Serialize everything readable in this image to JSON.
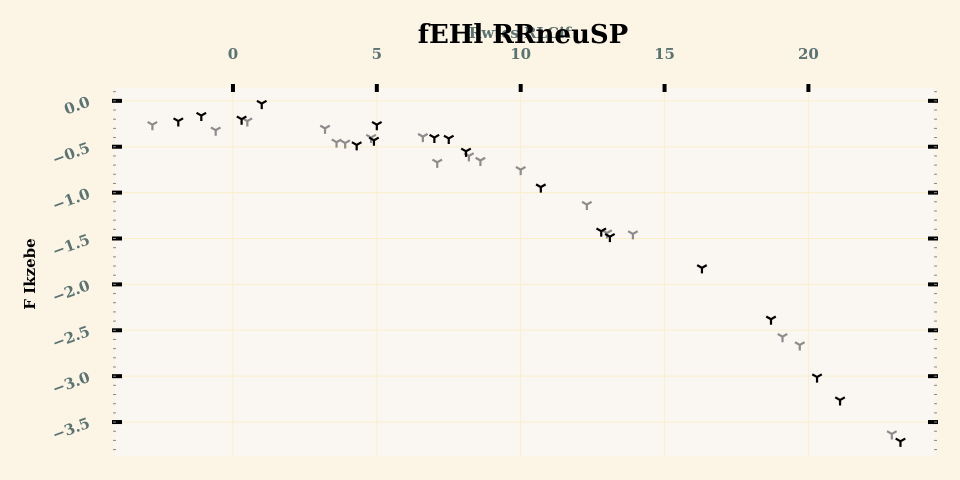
{
  "chart_data": {
    "type": "scatter",
    "title": "fEHl RRneuSP",
    "xlabel": "Rwtcs RLCif",
    "ylabel": "F Ikzebe",
    "xlim": [
      -4.1,
      24.4
    ],
    "ylim": [
      0.14,
      -3.87
    ],
    "x_ticks": [
      0,
      5,
      10,
      15,
      20
    ],
    "y_ticks": [
      0.0,
      -0.5,
      -1.0,
      -1.5,
      -2.0,
      -2.5,
      -3.0,
      -3.5
    ],
    "x_tick_labels": [
      "0",
      "5",
      "10",
      "15",
      "20"
    ],
    "y_tick_labels": [
      "0.0",
      "−0.5",
      "−1.0",
      "−1.5",
      "−2.0",
      "−2.5",
      "−3.0",
      "−3.5"
    ],
    "x_axis_position": "top",
    "grid": true,
    "marker": "tri_down",
    "colors": {
      "background": "#fcf5e5",
      "plot_bg": "#faf6f1",
      "grid": "#fbefc9",
      "tick_label": "#5b7373"
    },
    "series": [
      {
        "name": "series-1",
        "color": "#000000",
        "points": [
          {
            "x": 1.0,
            "y": -0.03
          },
          {
            "x": -1.1,
            "y": -0.16
          },
          {
            "x": -1.9,
            "y": -0.22
          },
          {
            "x": 0.3,
            "y": -0.2
          },
          {
            "x": 5.0,
            "y": -0.26
          },
          {
            "x": 4.9,
            "y": -0.43
          },
          {
            "x": 4.3,
            "y": -0.48
          },
          {
            "x": 7.0,
            "y": -0.4
          },
          {
            "x": 7.5,
            "y": -0.41
          },
          {
            "x": 8.1,
            "y": -0.55
          },
          {
            "x": 10.7,
            "y": -0.94
          },
          {
            "x": 12.8,
            "y": -1.42
          },
          {
            "x": 13.1,
            "y": -1.48
          },
          {
            "x": 16.3,
            "y": -1.82
          },
          {
            "x": 18.7,
            "y": -2.38
          },
          {
            "x": 20.3,
            "y": -3.01
          },
          {
            "x": 21.1,
            "y": -3.26
          },
          {
            "x": 23.2,
            "y": -3.71
          }
        ]
      },
      {
        "name": "series-2",
        "color": "#8c8c8c",
        "points": [
          {
            "x": -2.8,
            "y": -0.26
          },
          {
            "x": -0.6,
            "y": -0.32
          },
          {
            "x": 0.5,
            "y": -0.22
          },
          {
            "x": 3.2,
            "y": -0.3
          },
          {
            "x": 3.6,
            "y": -0.45
          },
          {
            "x": 3.9,
            "y": -0.46
          },
          {
            "x": 4.8,
            "y": -0.4
          },
          {
            "x": 6.6,
            "y": -0.39
          },
          {
            "x": 7.1,
            "y": -0.67
          },
          {
            "x": 8.2,
            "y": -0.6
          },
          {
            "x": 8.6,
            "y": -0.65
          },
          {
            "x": 10.0,
            "y": -0.75
          },
          {
            "x": 12.3,
            "y": -1.13
          },
          {
            "x": 13.0,
            "y": -1.44
          },
          {
            "x": 13.9,
            "y": -1.45
          },
          {
            "x": 19.1,
            "y": -2.57
          },
          {
            "x": 19.7,
            "y": -2.66
          },
          {
            "x": 22.9,
            "y": -3.63
          }
        ]
      }
    ]
  }
}
